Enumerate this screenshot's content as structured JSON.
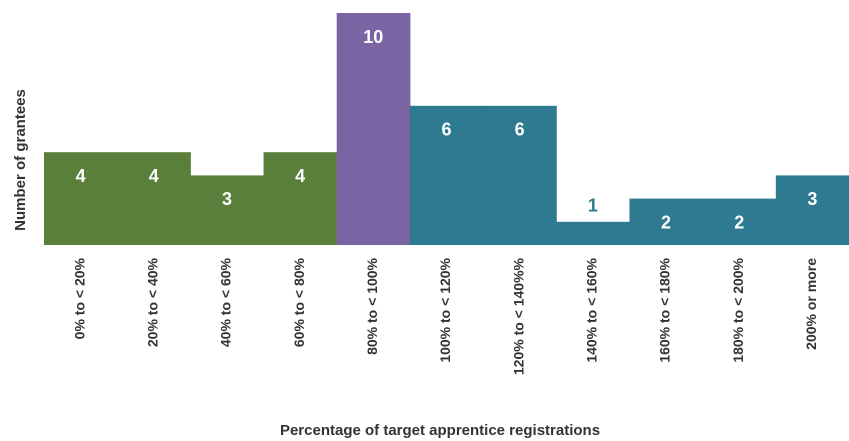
{
  "chart_data": {
    "type": "bar",
    "x_label": "Percentage of target apprentice registrations",
    "y_label": "Number of grantees",
    "categories": [
      "0% to < 20%",
      "20% to < 40%",
      "40% to < 60%",
      "60% to < 80%",
      "80% to < 100%",
      "100% to < 120%",
      "120% to < 140%%",
      "140% to < 160%",
      "160% to < 180%",
      "180% to < 200%",
      "200% or more"
    ],
    "values": [
      4,
      4,
      3,
      4,
      10,
      6,
      6,
      1,
      2,
      2,
      3
    ],
    "colors": [
      "#5a7f3a",
      "#5a7f3a",
      "#5a7f3a",
      "#5a7f3a",
      "#7a64a4",
      "#2e7a91",
      "#2e7a91",
      "#2e7a91",
      "#2e7a91",
      "#2e7a91",
      "#2e7a91"
    ],
    "ylim": [
      0,
      10
    ]
  }
}
